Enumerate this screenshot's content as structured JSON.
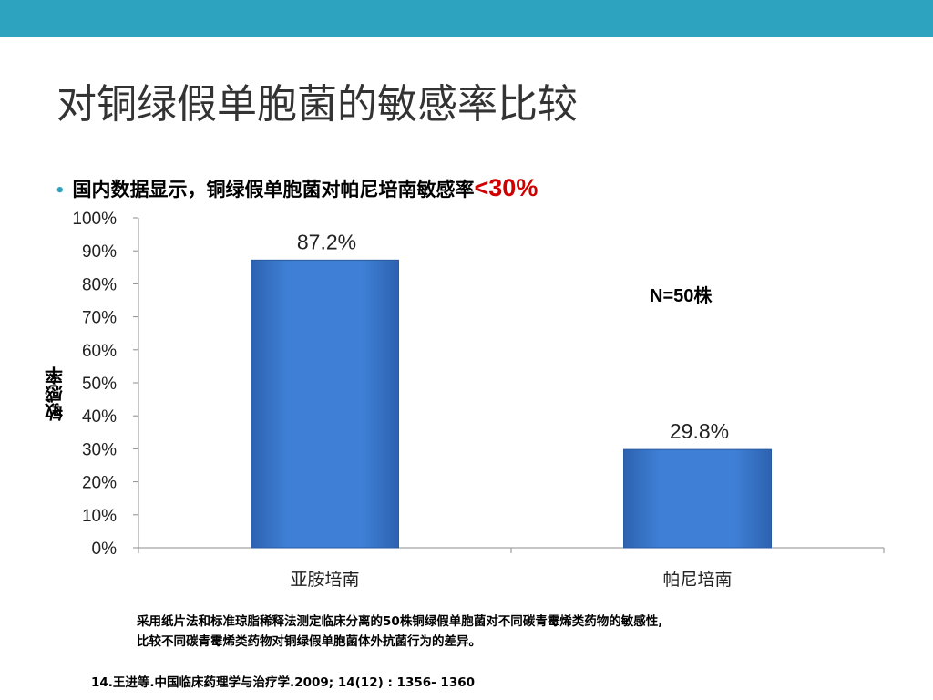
{
  "slide": {
    "title": "对铜绿假单胞菌的敏感率比较",
    "bullet_text": "国内数据显示，铜绿假单胞菌对帕尼培南敏感率",
    "bullet_emphasis": "<30%",
    "bullet_color": "#2ea3c0",
    "emphasis_color": "#d00000",
    "band_color": "#2ea3c0"
  },
  "chart_data": {
    "type": "bar",
    "categories": [
      "亚胺培南",
      "帕尼培南"
    ],
    "values": [
      87.2,
      29.8
    ],
    "data_labels": [
      "87.2%",
      "29.8%"
    ],
    "ylabel": "敏感率",
    "ylim": [
      0,
      100
    ],
    "yticks": [
      "0%",
      "10%",
      "20%",
      "30%",
      "40%",
      "50%",
      "60%",
      "70%",
      "80%",
      "90%",
      "100%"
    ],
    "bar_color": "#3d7cd0",
    "grid": false,
    "annotation": "N=50株"
  },
  "caption": {
    "line1": "采用纸片法和标准琼脂稀释法测定临床分离的50株铜绿假单胞菌对不同碳青霉烯类药物的敏感性,",
    "line2": "比较不同碳青霉烯类药物对铜绿假单胞菌体外抗菌行为的差异。"
  },
  "reference": "14.王进等.中国临床药理学与治疗学.2009; 14(12) : 1356- 1360"
}
